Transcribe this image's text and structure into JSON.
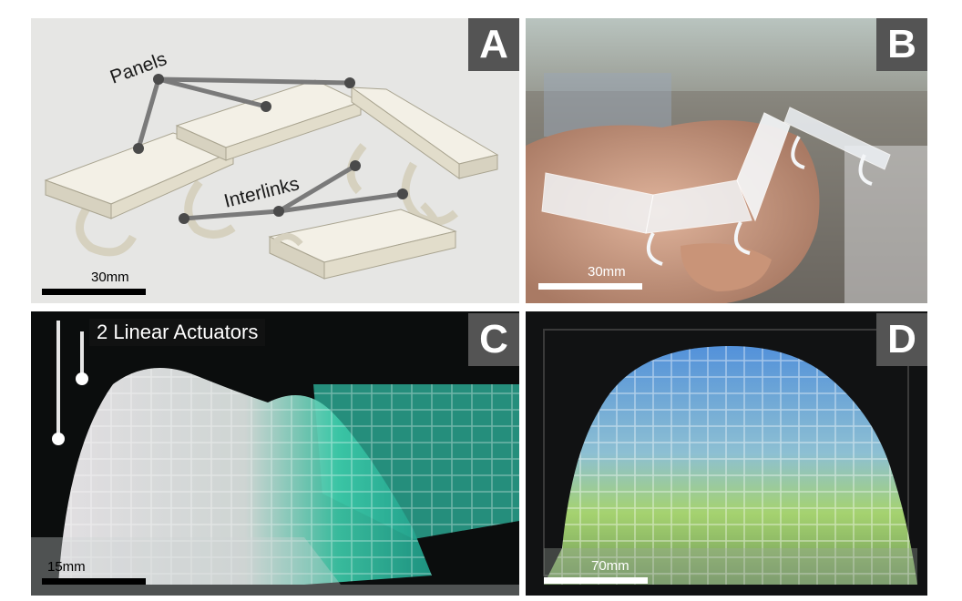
{
  "panels": {
    "a": {
      "letter": "A",
      "labels": {
        "panels": "Panels",
        "interlinks": "Interlinks"
      },
      "scale_bar": "30mm"
    },
    "b": {
      "letter": "B",
      "scale_bar": "30mm"
    },
    "c": {
      "letter": "C",
      "caption": "2 Linear Actuators",
      "scale_bar": "15mm"
    },
    "d": {
      "letter": "D",
      "scale_bar": "70mm"
    }
  },
  "colors": {
    "panel_letter_bg": "#545454",
    "cad_body": "#ece8da",
    "callout": "#7a7a7a",
    "teal": "#3cc9a8",
    "blue": "#5a9ff0",
    "lime": "#b6e87a"
  }
}
